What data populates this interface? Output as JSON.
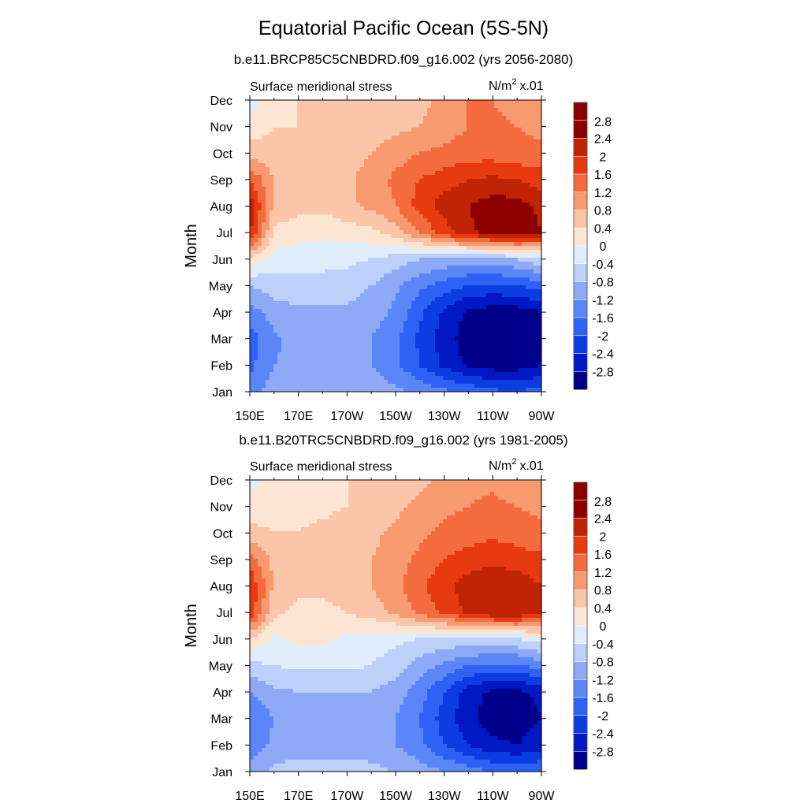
{
  "title": "Equatorial Pacific Ocean (5S-5N)",
  "panels": [
    {
      "subtitle": "b.e11.BRCP85C5CNBDRD.f09_g16.002 (yrs 2056-2080)",
      "left_label": "Surface meridional stress",
      "units_label": "N/m",
      "units_sup": "2",
      "units_scale": "x.01"
    },
    {
      "subtitle": "b.e11.B20TRC5CNBDRD.f09_g16.002 (yrs 1981-2005)",
      "left_label": "Surface meridional stress",
      "units_label": "N/m",
      "units_sup": "2",
      "units_scale": "x.01"
    }
  ],
  "colors": {
    "levels": [
      "-2.8",
      "-2.4",
      "-2",
      "-1.6",
      "-1.2",
      "-0.8",
      "-0.4",
      "0",
      "0.4",
      "0.8",
      "1.2",
      "1.6",
      "2",
      "2.4",
      "2.8"
    ],
    "fills": [
      "#00008b",
      "#0019c4",
      "#0c3de2",
      "#2e62f5",
      "#5b86f7",
      "#8eaaf7",
      "#bcd0fa",
      "#dfedfd",
      "#fde5d4",
      "#fac5a8",
      "#f79a70",
      "#f46b3e",
      "#e83a10",
      "#c12405",
      "#8c0000"
    ]
  },
  "chart_data": [
    {
      "type": "heatmap",
      "title": "b.e11.BRCP85C5CNBDRD.f09_g16.002 (yrs 2056-2080)",
      "variable": "Surface meridional stress",
      "units": "N/m2 x.01",
      "ylabel": "Month",
      "x": [
        150,
        160,
        170,
        180,
        190,
        200,
        210,
        220,
        230,
        240,
        250,
        260,
        270
      ],
      "xticks": [
        "150E",
        "170E",
        "170W",
        "150W",
        "130W",
        "110W",
        "90W"
      ],
      "y": [
        "Jan",
        "Feb",
        "Mar",
        "Apr",
        "May",
        "Jun",
        "Jul",
        "Aug",
        "Sep",
        "Oct",
        "Nov",
        "Dec"
      ],
      "z": [
        [
          -1.5,
          -0.9,
          -0.8,
          -0.8,
          -0.9,
          -1.0,
          -1.1,
          -1.3,
          -1.5,
          -1.7,
          -1.9,
          -2.0,
          -1.8
        ],
        [
          -1.7,
          -1.2,
          -1.0,
          -1.1,
          -1.1,
          -1.2,
          -1.5,
          -2.0,
          -2.5,
          -2.9,
          -3.0,
          -3.0,
          -2.8
        ],
        [
          -1.8,
          -1.3,
          -1.0,
          -1.0,
          -1.1,
          -1.2,
          -1.5,
          -2.1,
          -2.6,
          -3.0,
          -3.1,
          -3.1,
          -2.9
        ],
        [
          -1.4,
          -1.0,
          -0.9,
          -0.9,
          -0.9,
          -1.0,
          -1.3,
          -1.9,
          -2.5,
          -2.9,
          -3.0,
          -3.0,
          -2.8
        ],
        [
          -0.8,
          -0.6,
          -0.5,
          -0.5,
          -0.6,
          -0.8,
          -1.1,
          -1.5,
          -1.8,
          -2.0,
          -2.1,
          -2.0,
          -1.8
        ],
        [
          0.3,
          -0.2,
          -0.3,
          -0.3,
          -0.3,
          -0.4,
          -0.6,
          -0.8,
          -0.9,
          -1.0,
          -0.9,
          -0.8,
          -0.5
        ],
        [
          2.1,
          0.3,
          0.2,
          0.1,
          0.2,
          0.3,
          0.6,
          1.2,
          1.8,
          2.3,
          2.6,
          2.7,
          2.4
        ],
        [
          2.3,
          0.7,
          0.5,
          0.5,
          0.7,
          0.9,
          1.2,
          1.8,
          2.2,
          2.4,
          2.6,
          2.6,
          2.3
        ],
        [
          1.6,
          0.8,
          0.6,
          0.6,
          0.7,
          1.0,
          1.3,
          1.6,
          1.8,
          2.0,
          2.1,
          2.0,
          1.8
        ],
        [
          0.6,
          0.5,
          0.4,
          0.5,
          0.6,
          0.8,
          1.0,
          1.2,
          1.3,
          1.4,
          1.4,
          1.3,
          1.3
        ],
        [
          0.2,
          0.4,
          0.4,
          0.4,
          0.5,
          0.6,
          0.7,
          0.8,
          1.0,
          1.2,
          1.3,
          1.2,
          1.1
        ],
        [
          -0.2,
          0.3,
          0.4,
          0.4,
          0.5,
          0.6,
          0.6,
          0.7,
          0.9,
          1.2,
          1.2,
          1.0,
          0.9
        ]
      ],
      "levels": [
        -2.8,
        -2.4,
        -2,
        -1.6,
        -1.2,
        -0.8,
        -0.4,
        0,
        0.4,
        0.8,
        1.2,
        1.6,
        2,
        2.4,
        2.8
      ]
    },
    {
      "type": "heatmap",
      "title": "b.e11.B20TRC5CNBDRD.f09_g16.002 (yrs 1981-2005)",
      "variable": "Surface meridional stress",
      "units": "N/m2 x.01",
      "ylabel": "Month",
      "x": [
        150,
        160,
        170,
        180,
        190,
        200,
        210,
        220,
        230,
        240,
        250,
        260,
        270
      ],
      "xticks": [
        "150E",
        "170E",
        "170W",
        "150W",
        "130W",
        "110W",
        "90W"
      ],
      "y": [
        "Jan",
        "Feb",
        "Mar",
        "Apr",
        "May",
        "Jun",
        "Jul",
        "Aug",
        "Sep",
        "Oct",
        "Nov",
        "Dec"
      ],
      "z": [
        [
          -1.0,
          -0.7,
          -0.6,
          -0.6,
          -0.6,
          -0.7,
          -0.8,
          -1.0,
          -1.2,
          -1.4,
          -1.6,
          -1.7,
          -1.6
        ],
        [
          -1.5,
          -1.1,
          -1.0,
          -1.0,
          -1.0,
          -1.0,
          -1.2,
          -1.5,
          -2.0,
          -2.4,
          -2.7,
          -2.8,
          -2.6
        ],
        [
          -1.6,
          -1.2,
          -1.0,
          -1.0,
          -1.0,
          -1.0,
          -1.2,
          -1.6,
          -2.2,
          -2.7,
          -3.0,
          -3.0,
          -2.8
        ],
        [
          -1.2,
          -0.9,
          -0.8,
          -0.8,
          -0.8,
          -0.8,
          -1.0,
          -1.4,
          -2.0,
          -2.6,
          -2.9,
          -2.9,
          -2.7
        ],
        [
          -0.5,
          -0.4,
          -0.3,
          -0.3,
          -0.3,
          -0.4,
          -0.6,
          -1.0,
          -1.3,
          -1.6,
          -1.7,
          -1.7,
          -1.4
        ],
        [
          0.4,
          -0.1,
          0.1,
          0.1,
          -0.1,
          -0.2,
          -0.3,
          -0.4,
          -0.5,
          -0.5,
          -0.5,
          -0.4,
          -0.2
        ],
        [
          1.9,
          0.5,
          0.3,
          0.3,
          0.4,
          0.6,
          0.9,
          1.3,
          1.7,
          2.1,
          2.4,
          2.4,
          2.1
        ],
        [
          2.0,
          0.7,
          0.5,
          0.5,
          0.6,
          0.8,
          1.1,
          1.5,
          1.9,
          2.2,
          2.3,
          2.3,
          2.0
        ],
        [
          1.4,
          0.7,
          0.6,
          0.6,
          0.6,
          0.8,
          1.0,
          1.3,
          1.6,
          1.8,
          1.9,
          1.8,
          1.7
        ],
        [
          0.5,
          0.4,
          0.4,
          0.5,
          0.6,
          0.7,
          0.9,
          1.1,
          1.3,
          1.4,
          1.5,
          1.4,
          1.3
        ],
        [
          0.2,
          0.3,
          0.3,
          0.3,
          0.4,
          0.5,
          0.7,
          0.9,
          1.1,
          1.2,
          1.3,
          1.2,
          1.1
        ],
        [
          -0.2,
          0.2,
          0.3,
          0.3,
          0.4,
          0.5,
          0.6,
          0.7,
          0.9,
          1.1,
          1.1,
          0.9,
          0.8
        ]
      ],
      "levels": [
        -2.8,
        -2.4,
        -2,
        -1.6,
        -1.2,
        -0.8,
        -0.4,
        0,
        0.4,
        0.8,
        1.2,
        1.6,
        2,
        2.4,
        2.8
      ]
    }
  ]
}
